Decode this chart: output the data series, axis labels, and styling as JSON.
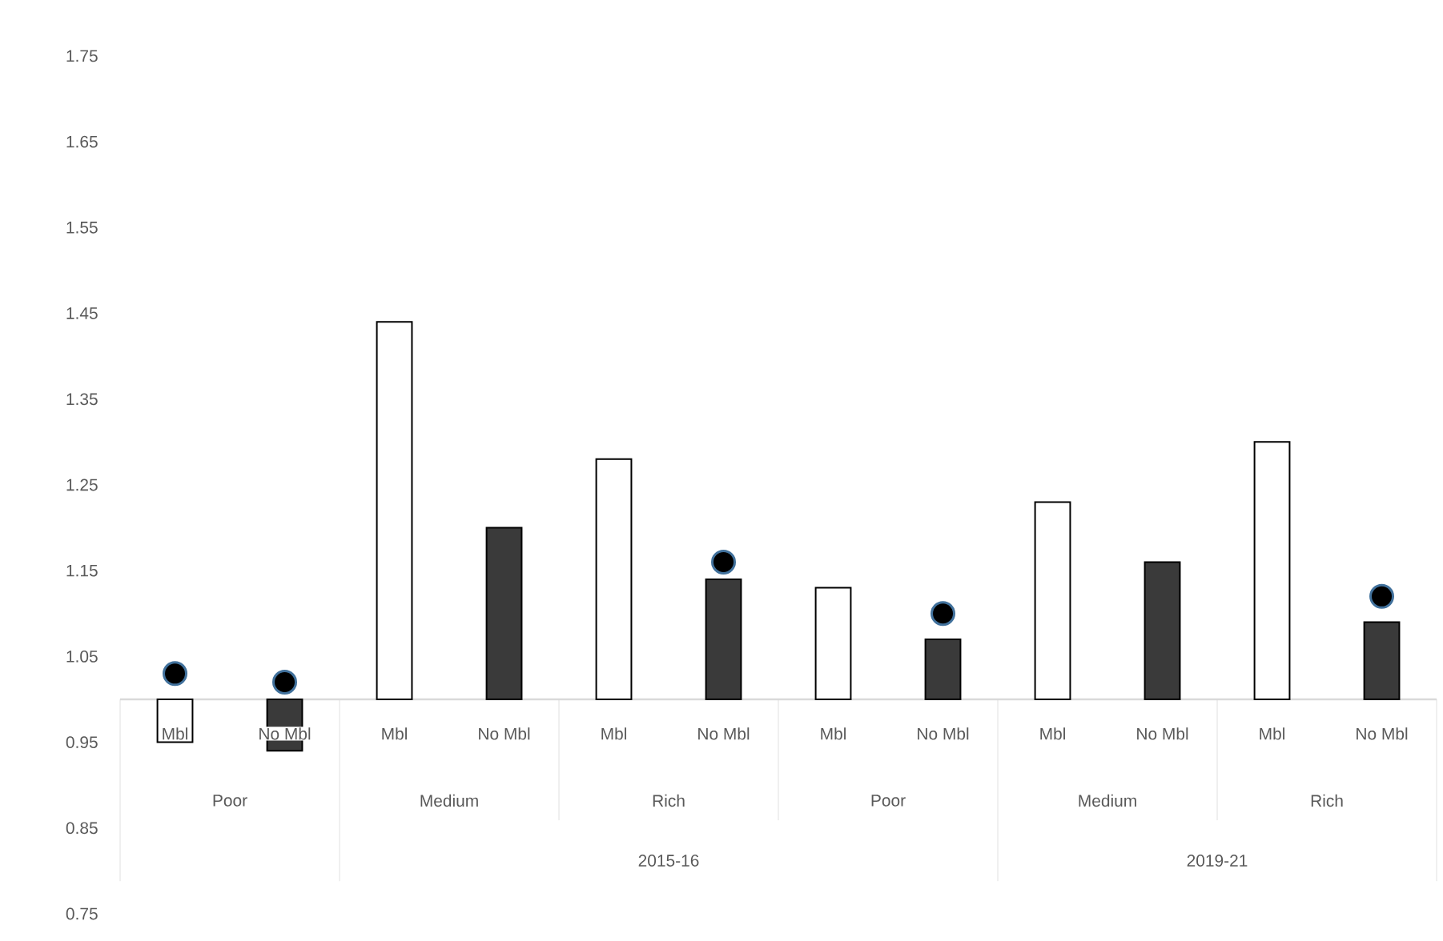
{
  "chart_data": {
    "type": "bar",
    "categories": [
      "Mbl",
      "No Mbl",
      "Mbl",
      "No Mbl",
      "Mbl",
      "No Mbl",
      "Mbl",
      "No Mbl",
      "Mbl",
      "No Mbl",
      "Mbl",
      "No Mbl"
    ],
    "series": [
      {
        "type": "bar",
        "colors": [
          "#ffffff",
          "#3a3a3a",
          "#ffffff",
          "#3a3a3a",
          "#ffffff",
          "#3a3a3a",
          "#ffffff",
          "#3a3a3a",
          "#ffffff",
          "#3a3a3a",
          "#ffffff",
          "#3a3a3a"
        ],
        "base": [
          1,
          1,
          1,
          1,
          1,
          1,
          1,
          1,
          1,
          1,
          1,
          1
        ],
        "values": [
          -0.05,
          -0.06,
          0.44,
          0.2,
          0.28,
          0.14,
          0.13,
          0.07,
          0.23,
          0.16,
          0.3,
          0.09
        ]
      },
      {
        "type": "scatter",
        "color": "#000000",
        "marker": "circle",
        "values": [
          1.03,
          1.02,
          null,
          null,
          null,
          1.16,
          null,
          1.1,
          null,
          null,
          null,
          1.12
        ]
      }
    ],
    "ylim": [
      0.75,
      1.75
    ],
    "yticks": [
      0.75,
      0.85,
      0.95,
      1.05,
      1.15,
      1.25,
      1.35,
      1.45,
      1.55,
      1.65,
      1.75
    ],
    "annotations": [
      "Poor",
      "Medium",
      "Rich",
      "Poor",
      "Medium",
      "Rich",
      "2015-16",
      "2019-21"
    ]
  }
}
